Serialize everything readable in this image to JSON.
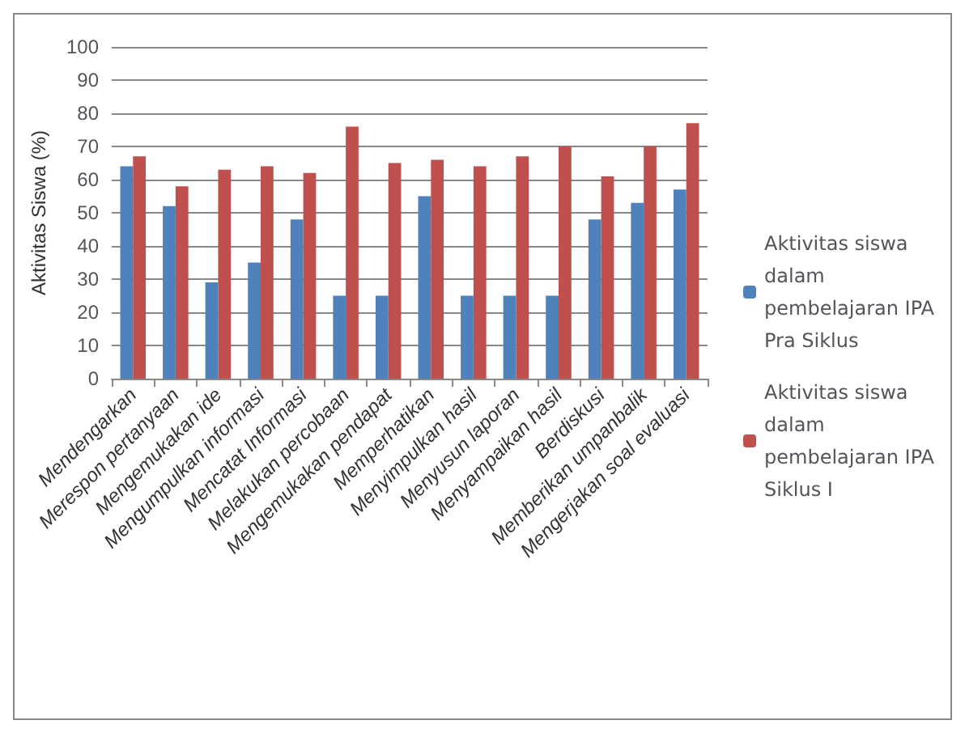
{
  "chart_data": {
    "type": "bar",
    "ylabel": "Aktivitas Siswa (%)",
    "categories": [
      "Mendengarkan",
      "Merespon pertanyaan",
      "Mengemukakan ide",
      "Mengumpulkan informasi",
      "Mencatat Informasi",
      "Melakukan percobaan",
      "Mengemukakan pendapat",
      "Memperhatikan",
      "Menyimpulkan hasil",
      "Menyusun laporan",
      "Menyampaikan hasil",
      "Berdiskusi",
      "Memberikan umpanbalik",
      "Mengerjakan soal evaluasi"
    ],
    "series": [
      {
        "name": "Aktivitas siswa dalam pembelajaran IPA Pra Siklus",
        "color": "#4f81bd",
        "values": [
          64,
          52,
          29,
          35,
          48,
          25,
          25,
          55,
          25,
          25,
          25,
          48,
          53,
          57
        ]
      },
      {
        "name": "Aktivitas siswa dalam pembelajaran IPA Siklus I",
        "color": "#c0504d",
        "values": [
          67,
          58,
          63,
          64,
          62,
          76,
          65,
          66,
          64,
          67,
          70,
          61,
          70,
          77
        ]
      }
    ],
    "ylim": [
      0,
      100
    ],
    "yticks": [
      0,
      10,
      20,
      30,
      40,
      50,
      60,
      70,
      80,
      90,
      100
    ],
    "grid": "y",
    "legend": "right"
  }
}
